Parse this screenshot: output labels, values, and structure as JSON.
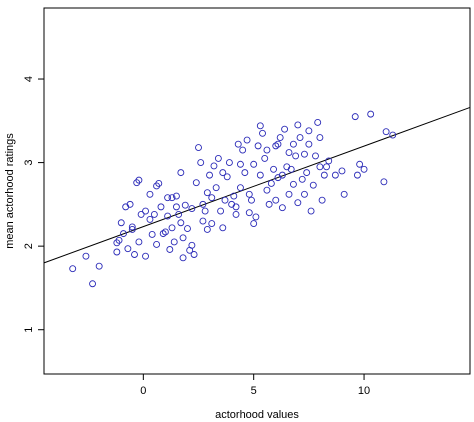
{
  "chart_data": {
    "type": "scatter",
    "title": "",
    "xlabel": "actorhood values",
    "ylabel": "mean actorhood ratings",
    "xlim": [
      -4.5,
      14.8
    ],
    "ylim": [
      0.47,
      4.85
    ],
    "xticks": [
      0,
      5,
      10
    ],
    "yticks": [
      1,
      2,
      3,
      4
    ],
    "xtick_labels": [
      "0",
      "5",
      "10"
    ],
    "ytick_labels": [
      "1",
      "2",
      "3",
      "4"
    ],
    "grid": false,
    "legend": "none",
    "colors": {
      "points": "#2b2bb8",
      "line": "#000000",
      "frame": "#000000",
      "background": "#ffffff"
    },
    "regression_line": {
      "x": [
        -4.5,
        14.8
      ],
      "y": [
        1.8,
        3.66
      ]
    },
    "series": [
      {
        "points": [
          [
            -3.2,
            1.73
          ],
          [
            -2.6,
            1.88
          ],
          [
            -2.3,
            1.55
          ],
          [
            -2.0,
            1.76
          ],
          [
            -1.2,
            1.93
          ],
          [
            -1.2,
            2.04
          ],
          [
            -1.1,
            2.07
          ],
          [
            -1.0,
            2.28
          ],
          [
            -0.9,
            2.15
          ],
          [
            -0.8,
            2.47
          ],
          [
            -0.7,
            1.97
          ],
          [
            -0.6,
            2.5
          ],
          [
            -0.5,
            2.2
          ],
          [
            -0.5,
            2.23
          ],
          [
            -0.4,
            1.9
          ],
          [
            -0.3,
            2.76
          ],
          [
            -0.2,
            2.79
          ],
          [
            -0.2,
            2.05
          ],
          [
            -0.1,
            2.38
          ],
          [
            0.1,
            2.42
          ],
          [
            0.1,
            1.88
          ],
          [
            0.3,
            2.32
          ],
          [
            0.3,
            2.62
          ],
          [
            0.4,
            2.14
          ],
          [
            0.5,
            2.38
          ],
          [
            0.6,
            2.02
          ],
          [
            0.6,
            2.72
          ],
          [
            0.7,
            2.75
          ],
          [
            0.8,
            2.47
          ],
          [
            0.9,
            2.15
          ],
          [
            1.0,
            2.17
          ],
          [
            1.1,
            2.58
          ],
          [
            1.1,
            2.36
          ],
          [
            1.2,
            1.96
          ],
          [
            1.3,
            2.22
          ],
          [
            1.3,
            2.58
          ],
          [
            1.4,
            2.05
          ],
          [
            1.5,
            2.47
          ],
          [
            1.5,
            2.6
          ],
          [
            1.6,
            2.38
          ],
          [
            1.7,
            2.88
          ],
          [
            1.7,
            2.28
          ],
          [
            1.8,
            2.1
          ],
          [
            1.8,
            1.86
          ],
          [
            1.9,
            2.49
          ],
          [
            2.0,
            2.21
          ],
          [
            2.1,
            1.95
          ],
          [
            2.2,
            2.45
          ],
          [
            2.2,
            2.01
          ],
          [
            2.3,
            1.9
          ],
          [
            2.4,
            2.76
          ],
          [
            2.5,
            3.18
          ],
          [
            2.6,
            3.0
          ],
          [
            2.7,
            2.3
          ],
          [
            2.7,
            2.5
          ],
          [
            2.8,
            2.42
          ],
          [
            2.9,
            2.2
          ],
          [
            2.9,
            2.64
          ],
          [
            3.0,
            2.85
          ],
          [
            3.1,
            2.58
          ],
          [
            3.1,
            2.27
          ],
          [
            3.2,
            2.96
          ],
          [
            3.3,
            2.7
          ],
          [
            3.4,
            3.05
          ],
          [
            3.5,
            2.42
          ],
          [
            3.6,
            2.88
          ],
          [
            3.6,
            2.22
          ],
          [
            3.7,
            2.55
          ],
          [
            3.8,
            2.83
          ],
          [
            3.9,
            3.0
          ],
          [
            4.0,
            2.5
          ],
          [
            4.1,
            2.6
          ],
          [
            4.2,
            2.38
          ],
          [
            4.2,
            2.47
          ],
          [
            4.3,
            3.22
          ],
          [
            4.4,
            2.7
          ],
          [
            4.4,
            2.98
          ],
          [
            4.5,
            3.15
          ],
          [
            4.6,
            2.88
          ],
          [
            4.7,
            3.27
          ],
          [
            4.8,
            2.4
          ],
          [
            4.8,
            2.62
          ],
          [
            4.9,
            2.55
          ],
          [
            5.0,
            2.98
          ],
          [
            5.0,
            2.27
          ],
          [
            5.1,
            2.35
          ],
          [
            5.2,
            3.2
          ],
          [
            5.3,
            2.85
          ],
          [
            5.3,
            3.44
          ],
          [
            5.4,
            3.35
          ],
          [
            5.5,
            3.05
          ],
          [
            5.6,
            2.67
          ],
          [
            5.6,
            3.15
          ],
          [
            5.7,
            2.5
          ],
          [
            5.8,
            2.75
          ],
          [
            5.9,
            2.92
          ],
          [
            6.0,
            2.55
          ],
          [
            6.0,
            3.2
          ],
          [
            6.1,
            2.82
          ],
          [
            6.1,
            3.22
          ],
          [
            6.2,
            3.3
          ],
          [
            6.3,
            2.85
          ],
          [
            6.3,
            2.46
          ],
          [
            6.4,
            3.4
          ],
          [
            6.5,
            2.95
          ],
          [
            6.6,
            3.12
          ],
          [
            6.6,
            2.62
          ],
          [
            6.7,
            2.92
          ],
          [
            6.8,
            3.22
          ],
          [
            6.8,
            2.74
          ],
          [
            6.9,
            3.08
          ],
          [
            7.0,
            3.45
          ],
          [
            7.0,
            2.52
          ],
          [
            7.1,
            3.3
          ],
          [
            7.2,
            2.8
          ],
          [
            7.3,
            3.1
          ],
          [
            7.3,
            2.62
          ],
          [
            7.4,
            2.88
          ],
          [
            7.5,
            3.22
          ],
          [
            7.5,
            3.38
          ],
          [
            7.6,
            2.42
          ],
          [
            7.7,
            2.73
          ],
          [
            7.8,
            3.08
          ],
          [
            7.9,
            3.48
          ],
          [
            8.0,
            2.95
          ],
          [
            8.0,
            3.3
          ],
          [
            8.1,
            2.55
          ],
          [
            8.2,
            2.85
          ],
          [
            8.3,
            2.95
          ],
          [
            8.4,
            3.02
          ],
          [
            8.7,
            2.85
          ],
          [
            9.0,
            2.9
          ],
          [
            9.1,
            2.62
          ],
          [
            9.6,
            3.55
          ],
          [
            9.7,
            2.85
          ],
          [
            9.8,
            2.98
          ],
          [
            10.0,
            2.92
          ],
          [
            10.3,
            3.58
          ],
          [
            10.9,
            2.77
          ],
          [
            11.0,
            3.37
          ],
          [
            11.3,
            3.33
          ]
        ]
      }
    ]
  }
}
